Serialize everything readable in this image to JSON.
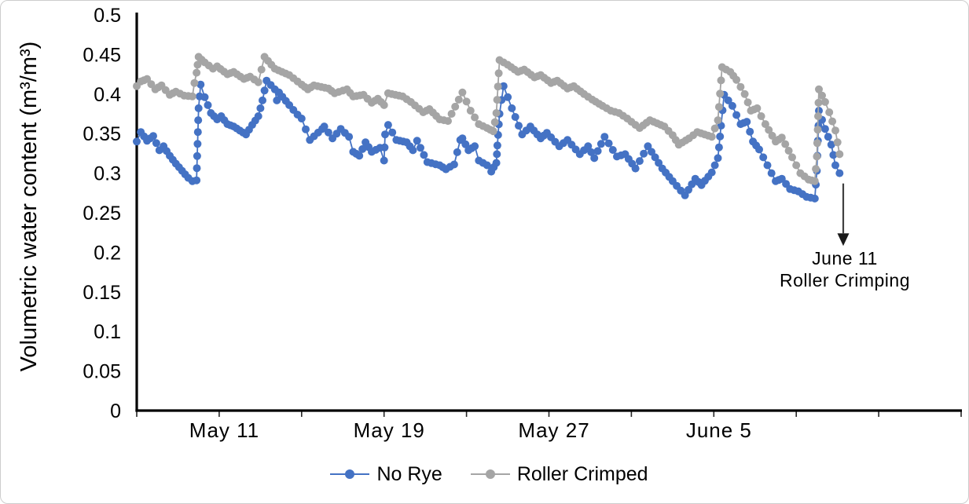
{
  "chart": {
    "y_axis_title": "Volumetric water content (m³/m³)",
    "annotation": {
      "line1": "June 11",
      "line2": "Roller Crimping"
    },
    "legend": [
      {
        "label": "No Rye",
        "color": "#4472C4"
      },
      {
        "label": "Roller Crimped",
        "color": "#A5A5A5"
      }
    ]
  },
  "chart_data": {
    "type": "line",
    "title": "",
    "xlabel": "",
    "ylabel": "Volumetric water content (m³/m³)",
    "grid": false,
    "legend_position": "bottom",
    "x_unit": "days since start of record (record begins ≈ May 7; tick every 4 days; data ends June 11)",
    "x_axis": {
      "range": [
        0,
        40
      ],
      "tick_positions": [
        0,
        4,
        8,
        12,
        16,
        20,
        24,
        28,
        32,
        36,
        40
      ],
      "labels": [
        {
          "text": "May 11",
          "t": 4.25
        },
        {
          "text": "May 19",
          "t": 12.25
        },
        {
          "text": "May 27",
          "t": 20.25
        },
        {
          "text": "June 5",
          "t": 28.25
        }
      ]
    },
    "y_axis": {
      "range": [
        0,
        0.5
      ],
      "tick_interval": 0.05,
      "ticks": [
        {
          "value": 0,
          "label": "0"
        },
        {
          "value": 0.05,
          "label": "0.05"
        },
        {
          "value": 0.1,
          "label": "0.1"
        },
        {
          "value": 0.15,
          "label": "0.15"
        },
        {
          "value": 0.2,
          "label": "0.2"
        },
        {
          "value": 0.25,
          "label": "0.25"
        },
        {
          "value": 0.3,
          "label": "0.3"
        },
        {
          "value": 0.35,
          "label": "0.35"
        },
        {
          "value": 0.4,
          "label": "0.4"
        },
        {
          "value": 0.45,
          "label": "0.45"
        },
        {
          "value": 0.5,
          "label": "0.5"
        }
      ]
    },
    "annotation": {
      "line1": "June 11",
      "line2": "Roller Crimping",
      "t": 34.28,
      "arrow_from_v": 0.287,
      "arrow_to_v": 0.224
    },
    "series": [
      {
        "name": "No Rye",
        "color": "#4472C4",
        "points": [
          [
            0.0,
            0.34
          ],
          [
            0.2,
            0.352
          ],
          [
            0.5,
            0.341
          ],
          [
            0.8,
            0.347
          ],
          [
            1.1,
            0.329
          ],
          [
            1.3,
            0.334
          ],
          [
            1.6,
            0.322
          ],
          [
            1.9,
            0.312
          ],
          [
            2.2,
            0.303
          ],
          [
            2.5,
            0.294
          ],
          [
            2.7,
            0.29
          ],
          [
            2.9,
            0.291
          ],
          [
            2.95,
            0.337
          ],
          [
            3.0,
            0.382
          ],
          [
            3.1,
            0.412
          ],
          [
            3.3,
            0.396
          ],
          [
            3.6,
            0.376
          ],
          [
            3.9,
            0.368
          ],
          [
            4.1,
            0.372
          ],
          [
            4.4,
            0.362
          ],
          [
            4.7,
            0.359
          ],
          [
            5.0,
            0.354
          ],
          [
            5.3,
            0.349
          ],
          [
            5.6,
            0.361
          ],
          [
            5.9,
            0.372
          ],
          [
            6.1,
            0.392
          ],
          [
            6.3,
            0.417
          ],
          [
            6.7,
            0.406
          ],
          [
            6.8,
            0.392
          ],
          [
            6.9,
            0.402
          ],
          [
            7.4,
            0.386
          ],
          [
            7.8,
            0.374
          ],
          [
            8.0,
            0.369
          ],
          [
            8.4,
            0.342
          ],
          [
            9.0,
            0.356
          ],
          [
            9.1,
            0.359
          ],
          [
            9.5,
            0.344
          ],
          [
            9.9,
            0.356
          ],
          [
            10.3,
            0.346
          ],
          [
            10.5,
            0.327
          ],
          [
            10.8,
            0.322
          ],
          [
            11.1,
            0.339
          ],
          [
            11.4,
            0.327
          ],
          [
            11.8,
            0.332
          ],
          [
            12.0,
            0.316
          ],
          [
            12.05,
            0.349
          ],
          [
            12.2,
            0.361
          ],
          [
            12.6,
            0.342
          ],
          [
            13.1,
            0.339
          ],
          [
            13.4,
            0.329
          ],
          [
            13.6,
            0.341
          ],
          [
            14.1,
            0.314
          ],
          [
            14.7,
            0.31
          ],
          [
            15.0,
            0.305
          ],
          [
            15.4,
            0.311
          ],
          [
            15.7,
            0.342
          ],
          [
            15.8,
            0.344
          ],
          [
            16.1,
            0.329
          ],
          [
            16.4,
            0.334
          ],
          [
            16.6,
            0.316
          ],
          [
            17.0,
            0.31
          ],
          [
            17.2,
            0.302
          ],
          [
            17.45,
            0.313
          ],
          [
            17.5,
            0.335
          ],
          [
            17.6,
            0.375
          ],
          [
            17.8,
            0.41
          ],
          [
            18.2,
            0.382
          ],
          [
            18.7,
            0.349
          ],
          [
            19.1,
            0.359
          ],
          [
            19.6,
            0.344
          ],
          [
            19.9,
            0.351
          ],
          [
            20.5,
            0.334
          ],
          [
            20.9,
            0.342
          ],
          [
            21.5,
            0.324
          ],
          [
            21.9,
            0.334
          ],
          [
            22.2,
            0.319
          ],
          [
            22.7,
            0.346
          ],
          [
            23.3,
            0.321
          ],
          [
            23.7,
            0.324
          ],
          [
            24.2,
            0.306
          ],
          [
            24.8,
            0.334
          ],
          [
            25.5,
            0.306
          ],
          [
            26.0,
            0.29
          ],
          [
            26.6,
            0.272
          ],
          [
            27.1,
            0.293
          ],
          [
            27.4,
            0.285
          ],
          [
            27.9,
            0.301
          ],
          [
            28.2,
            0.319
          ],
          [
            28.35,
            0.36
          ],
          [
            28.5,
            0.399
          ],
          [
            28.9,
            0.385
          ],
          [
            29.3,
            0.362
          ],
          [
            29.6,
            0.365
          ],
          [
            29.9,
            0.34
          ],
          [
            30.2,
            0.33
          ],
          [
            30.6,
            0.31
          ],
          [
            31.0,
            0.29
          ],
          [
            31.3,
            0.293
          ],
          [
            31.7,
            0.28
          ],
          [
            32.1,
            0.277
          ],
          [
            32.5,
            0.27
          ],
          [
            32.9,
            0.268
          ],
          [
            33.0,
            0.303
          ],
          [
            33.1,
            0.379
          ],
          [
            33.4,
            0.356
          ],
          [
            33.7,
            0.336
          ],
          [
            33.9,
            0.31
          ],
          [
            34.1,
            0.3
          ]
        ]
      },
      {
        "name": "Roller Crimped",
        "color": "#A5A5A5",
        "points": [
          [
            0.0,
            0.41
          ],
          [
            0.2,
            0.416
          ],
          [
            0.5,
            0.419
          ],
          [
            0.9,
            0.406
          ],
          [
            1.2,
            0.411
          ],
          [
            1.6,
            0.399
          ],
          [
            1.9,
            0.403
          ],
          [
            2.3,
            0.398
          ],
          [
            2.7,
            0.397
          ],
          [
            2.8,
            0.414
          ],
          [
            2.9,
            0.427
          ],
          [
            3.0,
            0.447
          ],
          [
            3.3,
            0.44
          ],
          [
            3.7,
            0.432
          ],
          [
            3.9,
            0.435
          ],
          [
            4.4,
            0.425
          ],
          [
            4.7,
            0.428
          ],
          [
            5.2,
            0.419
          ],
          [
            5.5,
            0.422
          ],
          [
            5.9,
            0.415
          ],
          [
            6.2,
            0.447
          ],
          [
            6.7,
            0.432
          ],
          [
            7.4,
            0.424
          ],
          [
            8.0,
            0.412
          ],
          [
            8.3,
            0.406
          ],
          [
            8.6,
            0.411
          ],
          [
            9.3,
            0.407
          ],
          [
            9.6,
            0.401
          ],
          [
            10.2,
            0.406
          ],
          [
            10.5,
            0.397
          ],
          [
            11.0,
            0.399
          ],
          [
            11.4,
            0.389
          ],
          [
            11.7,
            0.394
          ],
          [
            12.0,
            0.386
          ],
          [
            12.2,
            0.401
          ],
          [
            12.9,
            0.397
          ],
          [
            13.3,
            0.39
          ],
          [
            13.9,
            0.377
          ],
          [
            14.2,
            0.381
          ],
          [
            14.7,
            0.368
          ],
          [
            15.1,
            0.366
          ],
          [
            15.8,
            0.402
          ],
          [
            16.2,
            0.379
          ],
          [
            16.6,
            0.362
          ],
          [
            17.0,
            0.357
          ],
          [
            17.3,
            0.353
          ],
          [
            17.45,
            0.376
          ],
          [
            17.6,
            0.443
          ],
          [
            18.0,
            0.437
          ],
          [
            18.5,
            0.428
          ],
          [
            18.8,
            0.431
          ],
          [
            19.3,
            0.421
          ],
          [
            19.6,
            0.424
          ],
          [
            20.1,
            0.414
          ],
          [
            20.4,
            0.417
          ],
          [
            20.9,
            0.407
          ],
          [
            21.2,
            0.41
          ],
          [
            21.7,
            0.4
          ],
          [
            22.1,
            0.393
          ],
          [
            22.6,
            0.385
          ],
          [
            23.0,
            0.379
          ],
          [
            23.4,
            0.376
          ],
          [
            23.8,
            0.369
          ],
          [
            24.4,
            0.357
          ],
          [
            24.9,
            0.367
          ],
          [
            25.6,
            0.359
          ],
          [
            26.0,
            0.348
          ],
          [
            26.3,
            0.336
          ],
          [
            26.8,
            0.344
          ],
          [
            27.2,
            0.352
          ],
          [
            27.9,
            0.346
          ],
          [
            28.2,
            0.367
          ],
          [
            28.4,
            0.434
          ],
          [
            28.8,
            0.428
          ],
          [
            29.1,
            0.418
          ],
          [
            29.5,
            0.4
          ],
          [
            29.8,
            0.379
          ],
          [
            30.1,
            0.382
          ],
          [
            30.5,
            0.362
          ],
          [
            31.0,
            0.34
          ],
          [
            31.3,
            0.345
          ],
          [
            31.8,
            0.32
          ],
          [
            32.2,
            0.3
          ],
          [
            32.6,
            0.292
          ],
          [
            32.9,
            0.29
          ],
          [
            33.0,
            0.321
          ],
          [
            33.1,
            0.406
          ],
          [
            33.4,
            0.39
          ],
          [
            33.6,
            0.377
          ],
          [
            33.9,
            0.354
          ],
          [
            34.1,
            0.324
          ]
        ]
      }
    ]
  }
}
